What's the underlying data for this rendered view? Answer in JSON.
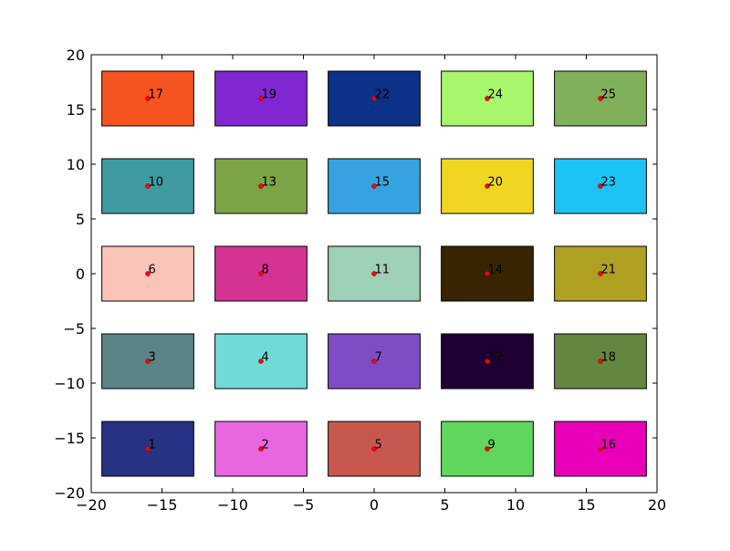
{
  "chart_data": {
    "type": "scatter",
    "title": "",
    "xlabel": "",
    "ylabel": "",
    "xlim": [
      -20,
      20
    ],
    "ylim": [
      -20,
      20
    ],
    "xticks": [
      -20,
      -15,
      -10,
      -5,
      0,
      5,
      10,
      15,
      20
    ],
    "yticks": [
      -20,
      -15,
      -10,
      -5,
      0,
      5,
      10,
      15,
      20
    ],
    "grid": false,
    "marker_color": "#ff0000",
    "box_half_width": 3.25,
    "box_half_height": 2.5,
    "points": [
      {
        "label": "1",
        "x": -16,
        "y": -16,
        "color": "#283282"
      },
      {
        "label": "2",
        "x": -8,
        "y": -16,
        "color": "#e866e0"
      },
      {
        "label": "5",
        "x": 0,
        "y": -16,
        "color": "#c8584e"
      },
      {
        "label": "9",
        "x": 8,
        "y": -16,
        "color": "#5fd75c"
      },
      {
        "label": "16",
        "x": 16,
        "y": -16,
        "color": "#ea00b8"
      },
      {
        "label": "3",
        "x": -16,
        "y": -8,
        "color": "#5a8486"
      },
      {
        "label": "4",
        "x": -8,
        "y": -8,
        "color": "#70dad9"
      },
      {
        "label": "7",
        "x": 0,
        "y": -8,
        "color": "#7e4dc6"
      },
      {
        "label": "12",
        "x": 8,
        "y": -8,
        "color": "#1f0033"
      },
      {
        "label": "18",
        "x": 16,
        "y": -8,
        "color": "#658640"
      },
      {
        "label": "6",
        "x": -16,
        "y": 0,
        "color": "#fbc4b8"
      },
      {
        "label": "8",
        "x": -8,
        "y": 0,
        "color": "#d43393"
      },
      {
        "label": "11",
        "x": 0,
        "y": 0,
        "color": "#9ecfb7"
      },
      {
        "label": "14",
        "x": 8,
        "y": 0,
        "color": "#382400"
      },
      {
        "label": "21",
        "x": 16,
        "y": 0,
        "color": "#b0a022"
      },
      {
        "label": "10",
        "x": -16,
        "y": 8,
        "color": "#3f9aa1"
      },
      {
        "label": "13",
        "x": -8,
        "y": 8,
        "color": "#7ca346"
      },
      {
        "label": "15",
        "x": 0,
        "y": 8,
        "color": "#36a3e0"
      },
      {
        "label": "20",
        "x": 8,
        "y": 8,
        "color": "#efd622"
      },
      {
        "label": "23",
        "x": 16,
        "y": 8,
        "color": "#1cc3f4"
      },
      {
        "label": "17",
        "x": -16,
        "y": 16,
        "color": "#f65522"
      },
      {
        "label": "19",
        "x": -8,
        "y": 16,
        "color": "#8027d2"
      },
      {
        "label": "22",
        "x": 0,
        "y": 16,
        "color": "#0b3287"
      },
      {
        "label": "24",
        "x": 8,
        "y": 16,
        "color": "#a7f66b"
      },
      {
        "label": "25",
        "x": 16,
        "y": 16,
        "color": "#81b05a"
      }
    ]
  }
}
